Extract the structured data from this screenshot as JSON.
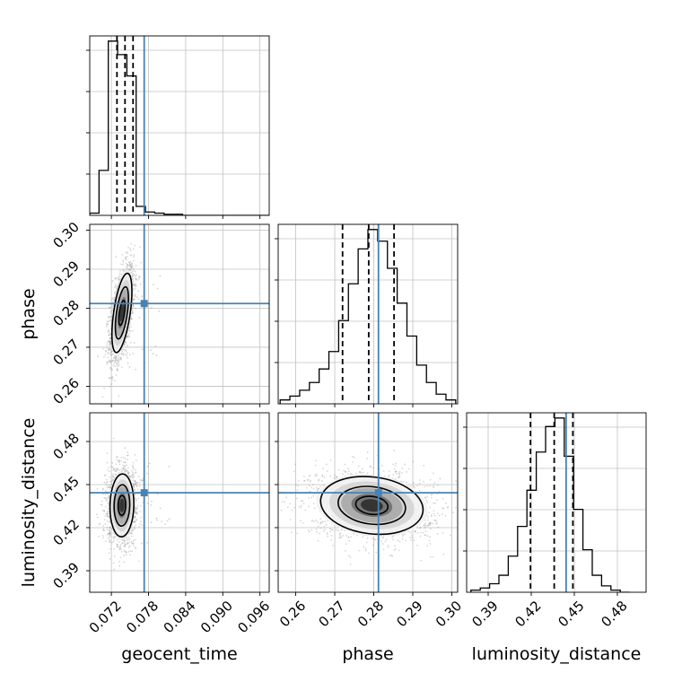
{
  "chart_data": {
    "type": "corner",
    "parameters": [
      "geocent_time",
      "phase",
      "luminosity_distance"
    ],
    "truths": {
      "geocent_time": 0.0773,
      "phase": 0.2812,
      "luminosity_distance": 0.4443
    },
    "colors": {
      "truth": "#4682b4",
      "histogram": "#000000",
      "grid": "#c0c0c0",
      "scatter": "#8c8c8c"
    },
    "axes": {
      "geocent_time": {
        "range": [
          0.0685,
          0.0975
        ],
        "ticks": [
          0.072,
          0.078,
          0.084,
          0.09,
          0.096
        ],
        "tick_labels": [
          "0.072",
          "0.078",
          "0.084",
          "0.090",
          "0.096"
        ],
        "label": "geocent_time"
      },
      "phase": {
        "range": [
          0.2555,
          0.3015
        ],
        "ticks": [
          0.26,
          0.27,
          0.28,
          0.29,
          0.3
        ],
        "tick_labels": [
          "0.26",
          "0.27",
          "0.28",
          "0.29",
          "0.30"
        ],
        "label": "phase"
      },
      "luminosity_distance": {
        "range": [
          0.375,
          0.5
        ],
        "ticks": [
          0.39,
          0.42,
          0.45,
          0.48
        ],
        "tick_labels": [
          "0.39",
          "0.42",
          "0.45",
          "0.48"
        ],
        "label": "luminosity_distance"
      }
    },
    "histograms": {
      "geocent_time": {
        "edges": [
          0.0685,
          0.07,
          0.0715,
          0.073,
          0.0745,
          0.076,
          0.0775,
          0.079,
          0.0805,
          0.082,
          0.0835,
          0.085,
          0.0865,
          0.088,
          0.0895,
          0.091,
          0.0925,
          0.094,
          0.0955,
          0.0975
        ],
        "counts": [
          2,
          40,
          155,
          143,
          124,
          8,
          3,
          2,
          1,
          1,
          0,
          0,
          0,
          0,
          0,
          0,
          0,
          0,
          0
        ],
        "quantiles": [
          0.0729,
          0.0742,
          0.0755
        ]
      },
      "phase": {
        "edges": [
          0.256,
          0.2585,
          0.261,
          0.2635,
          0.266,
          0.2685,
          0.271,
          0.2735,
          0.276,
          0.2785,
          0.281,
          0.2835,
          0.286,
          0.2885,
          0.291,
          0.2935,
          0.296,
          0.2985,
          0.301
        ],
        "counts": [
          2,
          4,
          7,
          11,
          18,
          27,
          43,
          62,
          80,
          90,
          84,
          70,
          52,
          35,
          20,
          11,
          5,
          2
        ],
        "quantiles": [
          0.272,
          0.2787,
          0.2852
        ]
      },
      "luminosity_distance": {
        "edges": [
          0.378,
          0.3845,
          0.391,
          0.3975,
          0.404,
          0.4105,
          0.417,
          0.4235,
          0.43,
          0.4365,
          0.443,
          0.4495,
          0.456,
          0.4625,
          0.469,
          0.4755,
          0.482,
          0.4885
        ],
        "counts": [
          1,
          2,
          4,
          8,
          17,
          31,
          48,
          66,
          78,
          82,
          64,
          39,
          20,
          8,
          3,
          1,
          0
        ],
        "quantiles": [
          0.4195,
          0.436,
          0.449
        ]
      }
    },
    "joint": {
      "phase_vs_geocent_time": {
        "mean": [
          0.0737,
          0.2788
        ],
        "sd": [
          0.00092,
          0.0058
        ],
        "corr": 0.55
      },
      "luminosity_distance_vs_geocent_time": {
        "mean": [
          0.0737,
          0.4355
        ],
        "sd": [
          0.0011,
          0.0125
        ],
        "corr": 0.05
      },
      "luminosity_distance_vs_phase": {
        "mean": [
          0.2795,
          0.4355
        ],
        "sd": [
          0.0075,
          0.0115
        ],
        "corr": -0.15
      }
    }
  }
}
